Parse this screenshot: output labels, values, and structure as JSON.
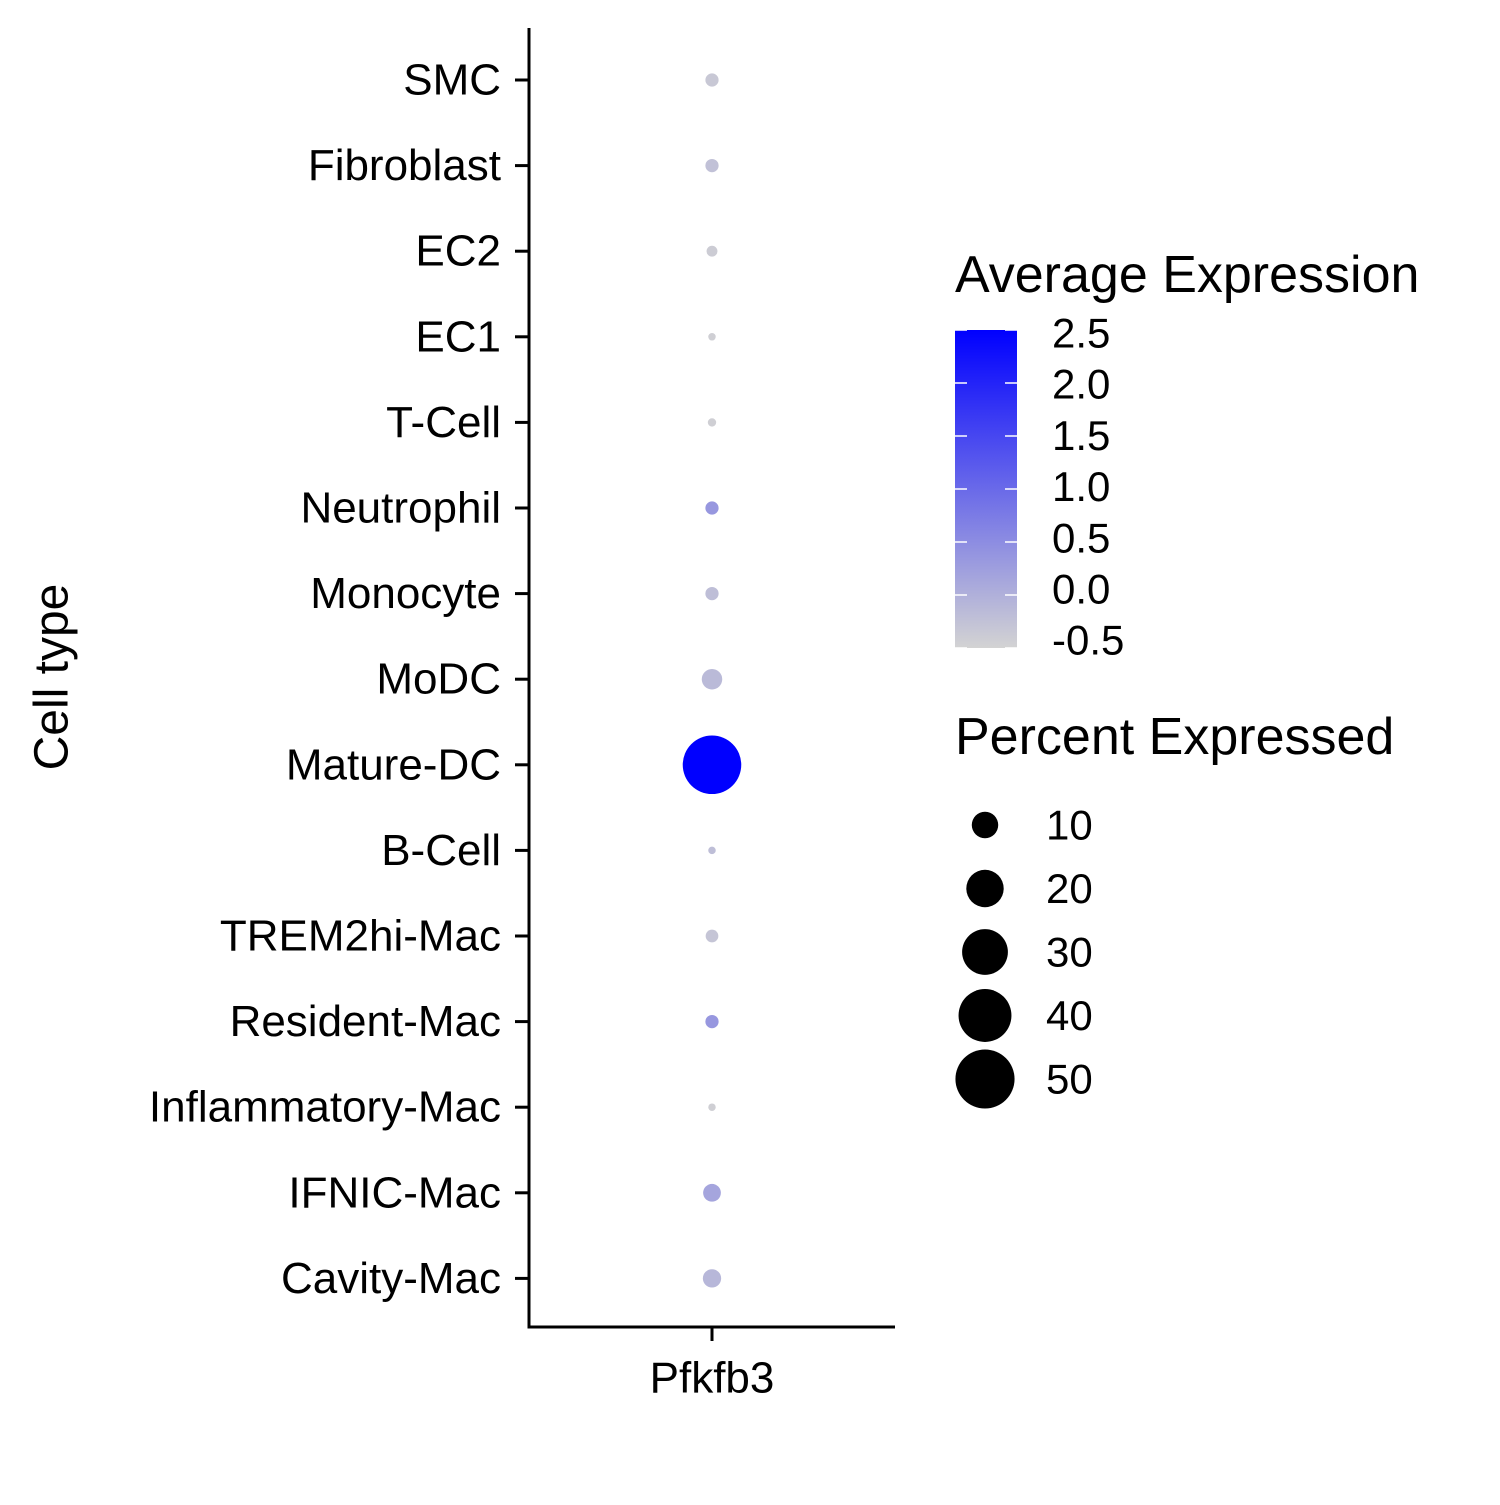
{
  "chart_data": {
    "type": "scatter",
    "subtype": "dot-plot",
    "ylabel": "Cell type",
    "x_categories": [
      "Pfkfb3"
    ],
    "categories": [
      "SMC",
      "Fibroblast",
      "EC2",
      "EC1",
      "T-Cell",
      "Neutrophil",
      "Monocyte",
      "MoDC",
      "Mature-DC",
      "B-Cell",
      "TREM2hi-Mac",
      "Resident-Mac",
      "Inflammatory-Mac",
      "IFNIC-Mac",
      "Cavity-Mac"
    ],
    "points": [
      {
        "cell_type": "SMC",
        "gene": "Pfkfb3",
        "avg_expression": -0.35,
        "pct_expressed": 2.5
      },
      {
        "cell_type": "Fibroblast",
        "gene": "Pfkfb3",
        "avg_expression": -0.25,
        "pct_expressed": 2.5
      },
      {
        "cell_type": "EC2",
        "gene": "Pfkfb3",
        "avg_expression": -0.4,
        "pct_expressed": 1.7
      },
      {
        "cell_type": "EC1",
        "gene": "Pfkfb3",
        "avg_expression": -0.45,
        "pct_expressed": 0.8
      },
      {
        "cell_type": "T-Cell",
        "gene": "Pfkfb3",
        "avg_expression": -0.45,
        "pct_expressed": 1.0
      },
      {
        "cell_type": "Neutrophil",
        "gene": "Pfkfb3",
        "avg_expression": 0.35,
        "pct_expressed": 2.5
      },
      {
        "cell_type": "Monocyte",
        "gene": "Pfkfb3",
        "avg_expression": -0.2,
        "pct_expressed": 2.5
      },
      {
        "cell_type": "MoDC",
        "gene": "Pfkfb3",
        "avg_expression": -0.15,
        "pct_expressed": 6.0
      },
      {
        "cell_type": "Mature-DC",
        "gene": "Pfkfb3",
        "avg_expression": 2.5,
        "pct_expressed": 49.0
      },
      {
        "cell_type": "B-Cell",
        "gene": "Pfkfb3",
        "avg_expression": -0.2,
        "pct_expressed": 0.8
      },
      {
        "cell_type": "TREM2hi-Mac",
        "gene": "Pfkfb3",
        "avg_expression": -0.3,
        "pct_expressed": 2.3
      },
      {
        "cell_type": "Resident-Mac",
        "gene": "Pfkfb3",
        "avg_expression": 0.35,
        "pct_expressed": 2.5
      },
      {
        "cell_type": "Inflammatory-Mac",
        "gene": "Pfkfb3",
        "avg_expression": -0.45,
        "pct_expressed": 0.8
      },
      {
        "cell_type": "IFNIC-Mac",
        "gene": "Pfkfb3",
        "avg_expression": 0.15,
        "pct_expressed": 4.5
      },
      {
        "cell_type": "Cavity-Mac",
        "gene": "Pfkfb3",
        "avg_expression": -0.1,
        "pct_expressed": 4.8
      }
    ],
    "color_scale": {
      "title": "Average Expression",
      "low_color": "#d3d3d3",
      "high_color": "#0000ff",
      "range": [
        -0.5,
        2.5
      ],
      "breaks": [
        2.5,
        2.0,
        1.5,
        1.0,
        0.5,
        0.0,
        -0.5
      ],
      "break_labels": [
        "2.5",
        "2.0",
        "1.5",
        "1.0",
        "0.5",
        "0.0",
        "-0.5"
      ]
    },
    "size_scale": {
      "title": "Percent Expressed",
      "breaks": [
        10,
        20,
        30,
        40,
        50
      ],
      "break_labels": [
        "10",
        "20",
        "30",
        "40",
        "50"
      ]
    },
    "grid": false,
    "legend_position": "right"
  }
}
